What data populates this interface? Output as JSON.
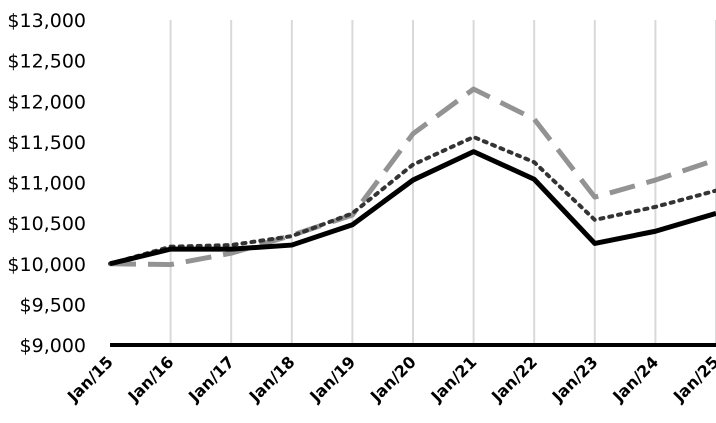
{
  "chart_data": {
    "type": "line",
    "categories": [
      "Jan/15",
      "Jan/16",
      "Jan/17",
      "Jan/18",
      "Jan/19",
      "Jan/20",
      "Jan/21",
      "Jan/22",
      "Jan/23",
      "Jan/24",
      "Jan/25"
    ],
    "ylim": [
      9000,
      13000
    ],
    "yticks": [
      9000,
      9500,
      10000,
      10500,
      11000,
      11500,
      12000,
      12500,
      13000
    ],
    "ytick_labels": [
      "$9,000",
      "$9,500",
      "$10,000",
      "$10,500",
      "$11,000",
      "$11,500",
      "$12,000",
      "$12,500",
      "$13,000"
    ],
    "grid": "vertical",
    "series": [
      {
        "style": "dashed",
        "color": "#939393",
        "values": [
          10000,
          9990,
          10130,
          10350,
          10600,
          11600,
          12150,
          11780,
          10820,
          11030,
          11280
        ]
      },
      {
        "style": "dotted",
        "color": "#333333",
        "values": [
          10000,
          10210,
          10230,
          10340,
          10620,
          11220,
          11560,
          11250,
          10540,
          10700,
          10900
        ]
      },
      {
        "style": "solid",
        "color": "#000000",
        "values": [
          10000,
          10180,
          10180,
          10230,
          10480,
          11030,
          11380,
          11040,
          10250,
          10400,
          10620
        ]
      }
    ]
  }
}
